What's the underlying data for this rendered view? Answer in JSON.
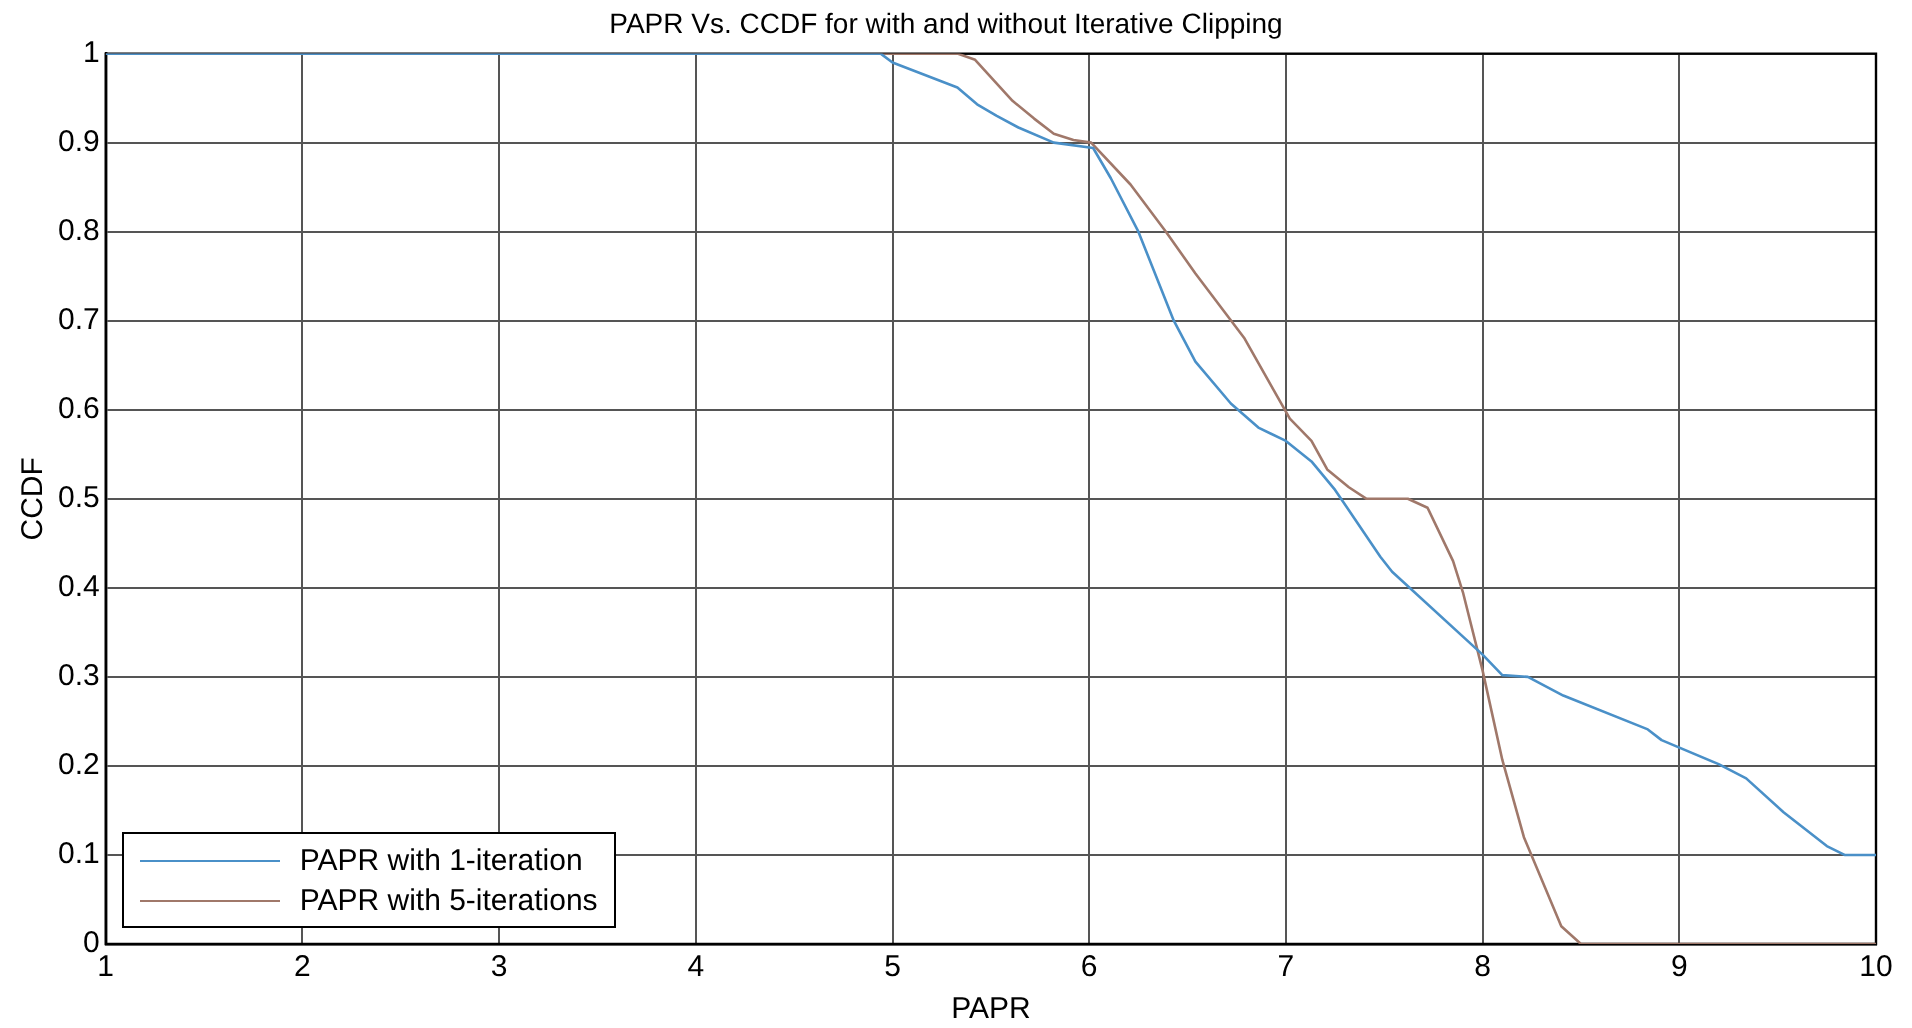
{
  "chart_data": {
    "type": "line",
    "title": "PAPR Vs. CCDF for with and without Iterative Clipping",
    "xlabel": "PAPR",
    "ylabel": "CCDF",
    "xlim": [
      1,
      10
    ],
    "xticks": [
      1,
      2,
      3,
      4,
      5,
      6,
      7,
      8,
      9,
      10
    ],
    "ylim": [
      0,
      1
    ],
    "yticks": [
      0,
      0.1,
      0.2,
      0.3,
      0.4,
      0.5,
      0.6,
      0.7,
      0.8,
      0.9,
      1
    ],
    "grid": true,
    "legend": "bottom left",
    "marker": "none",
    "line_style": "solid",
    "series": [
      {
        "name": "PAPR with 1-iteration",
        "color": "#4a90c8",
        "x": [
          1,
          4.94,
          5.0,
          5.33,
          5.43,
          5.53,
          5.64,
          5.82,
          6.02,
          6.11,
          6.25,
          6.43,
          6.54,
          6.72,
          6.86,
          7.0,
          7.13,
          7.25,
          7.48,
          7.54,
          8.0,
          8.1,
          8.23,
          8.41,
          8.84,
          8.91,
          9.2,
          9.34,
          9.53,
          9.75,
          9.84,
          10
        ],
        "values": [
          1,
          1,
          0.99,
          0.962,
          0.943,
          0.93,
          0.917,
          0.9,
          0.894,
          0.86,
          0.8,
          0.7,
          0.654,
          0.607,
          0.58,
          0.565,
          0.542,
          0.51,
          0.435,
          0.418,
          0.325,
          0.302,
          0.3,
          0.279,
          0.241,
          0.229,
          0.202,
          0.186,
          0.148,
          0.11,
          0.1,
          0.1
        ]
      },
      {
        "name": "PAPR with 5-iterations",
        "color": "#a0786a",
        "x": [
          1,
          5.33,
          5.42,
          5.61,
          5.72,
          5.82,
          5.92,
          6.01,
          6.21,
          6.39,
          6.54,
          6.79,
          7.02,
          7.13,
          7.21,
          7.32,
          7.41,
          7.62,
          7.72,
          7.85,
          7.9,
          8.0,
          8.1,
          8.21,
          8.4,
          8.5,
          10
        ],
        "values": [
          1,
          1,
          0.993,
          0.947,
          0.927,
          0.91,
          0.903,
          0.9,
          0.853,
          0.8,
          0.753,
          0.68,
          0.59,
          0.565,
          0.533,
          0.513,
          0.5,
          0.5,
          0.49,
          0.43,
          0.395,
          0.307,
          0.207,
          0.12,
          0.02,
          0,
          0
        ]
      }
    ]
  }
}
